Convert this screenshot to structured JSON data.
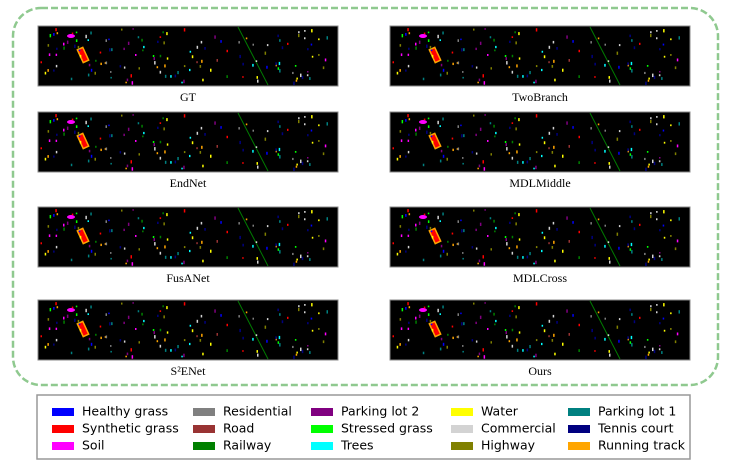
{
  "panels": [
    {
      "label": "GT"
    },
    {
      "label": "TwoBranch"
    },
    {
      "label": "EndNet"
    },
    {
      "label": "MDLMiddle"
    },
    {
      "label": "FusANet"
    },
    {
      "label": "MDLCross"
    },
    {
      "label": "S²ENet"
    },
    {
      "label": "Ours"
    }
  ],
  "legend": [
    {
      "name": "Healthy grass",
      "color": "#0000ff"
    },
    {
      "name": "Synthetic grass",
      "color": "#ff0000"
    },
    {
      "name": "Soil",
      "color": "#ff00ff"
    },
    {
      "name": "Residential",
      "color": "#808080"
    },
    {
      "name": "Road",
      "color": "#993333"
    },
    {
      "name": "Railway",
      "color": "#008000"
    },
    {
      "name": "Parking lot 2",
      "color": "#800080"
    },
    {
      "name": "Stressed grass",
      "color": "#00ff00"
    },
    {
      "name": "Trees",
      "color": "#00ffff"
    },
    {
      "name": "Water",
      "color": "#ffff00"
    },
    {
      "name": "Commercial",
      "color": "#d3d3d3"
    },
    {
      "name": "Highway",
      "color": "#808000"
    },
    {
      "name": "Parking lot 1",
      "color": "#008080"
    },
    {
      "name": "Tennis court",
      "color": "#000080"
    },
    {
      "name": "Running track",
      "color": "#ffa500"
    }
  ]
}
